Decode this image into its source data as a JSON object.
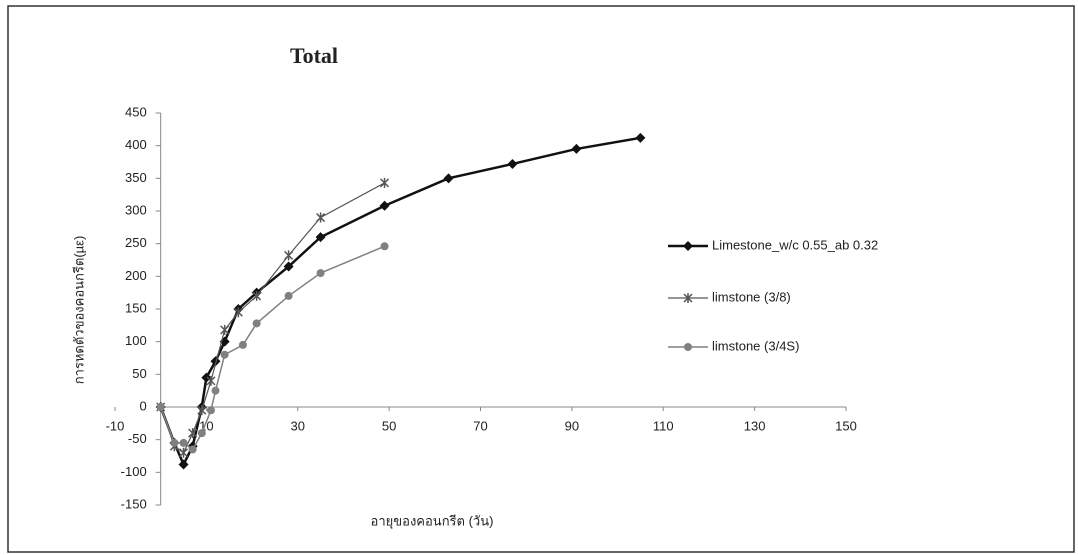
{
  "chart_data": {
    "type": "line",
    "title": "Total",
    "x_label": "อายุของคอนกรีต (วัน)",
    "y_label": "การหดตัวของคอนกรีต(µε)",
    "xlim": [
      -10,
      150
    ],
    "xticks": [
      -10,
      10,
      30,
      50,
      70,
      90,
      110,
      130,
      150
    ],
    "ylim": [
      -150,
      450
    ],
    "yticks": [
      -150,
      -100,
      -50,
      0,
      50,
      100,
      150,
      200,
      250,
      300,
      350,
      400,
      450
    ],
    "legend": "right",
    "series": [
      {
        "name": "Limestone_w/c 0.55_ab 0.32",
        "color": "#111111",
        "marker": "diamond",
        "x": [
          0,
          3,
          5,
          7,
          9,
          10,
          12,
          14,
          17,
          21,
          28,
          35,
          49,
          63,
          77,
          91,
          105
        ],
        "values": [
          0,
          -55,
          -88,
          -60,
          0,
          45,
          70,
          100,
          150,
          175,
          215,
          260,
          308,
          350,
          372,
          395,
          412
        ]
      },
      {
        "name": "limstone (3/8)",
        "color": "#555555",
        "marker": "x",
        "x": [
          0,
          3,
          5,
          7,
          9,
          11,
          14,
          17,
          21,
          28,
          35,
          49
        ],
        "values": [
          0,
          -60,
          -70,
          -40,
          -5,
          40,
          118,
          145,
          170,
          232,
          290,
          343
        ]
      },
      {
        "name": "limstone (3/4S)",
        "color": "#808080",
        "marker": "circle",
        "x": [
          0,
          3,
          5,
          7,
          9,
          11,
          12,
          14,
          18,
          21,
          28,
          35,
          49
        ],
        "values": [
          0,
          -55,
          -55,
          -65,
          -40,
          -5,
          25,
          80,
          95,
          128,
          170,
          205,
          246
        ]
      }
    ]
  }
}
